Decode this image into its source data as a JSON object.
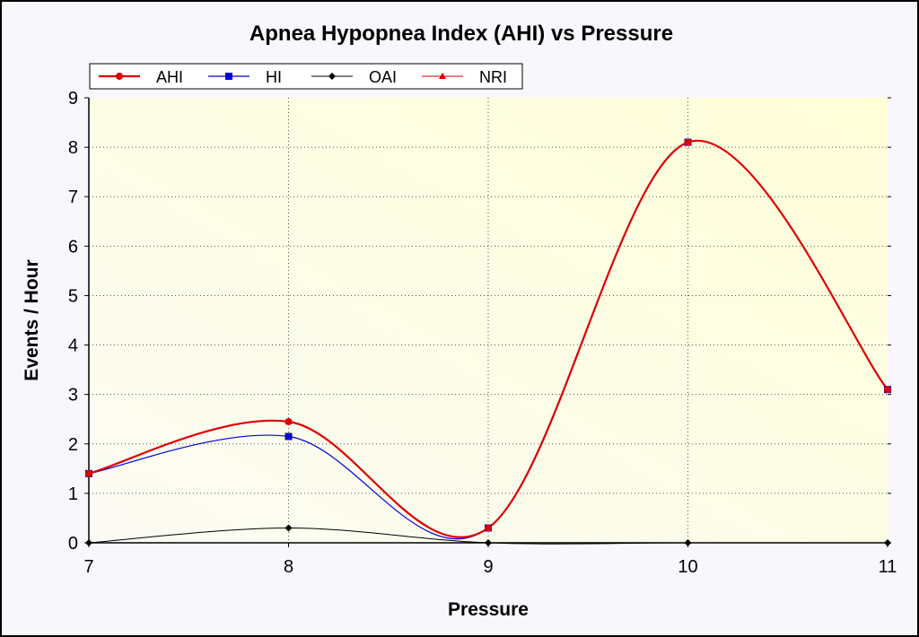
{
  "chart_data": {
    "type": "line",
    "title": "Apnea Hypopnea Index (AHI) vs Pressure",
    "xlabel": "Pressure",
    "ylabel": "Events / Hour",
    "x": [
      7,
      8,
      9,
      10,
      11
    ],
    "xlim": [
      7,
      11
    ],
    "ylim": [
      0,
      9
    ],
    "xticks": [
      "7",
      "8",
      "9",
      "10",
      "11"
    ],
    "yticks": [
      "0",
      "1",
      "2",
      "3",
      "4",
      "5",
      "6",
      "7",
      "8",
      "9"
    ],
    "grid": true,
    "smooth": true,
    "legend_position": "top-left",
    "plot_background": [
      "#ffffd8",
      "#fbfbf4"
    ],
    "series": [
      {
        "name": "AHI",
        "values": [
          1.4,
          2.45,
          0.3,
          8.1,
          3.1
        ],
        "color": "#dd0000",
        "marker": "circle",
        "width": 2.2
      },
      {
        "name": "HI",
        "values": [
          1.4,
          2.15,
          0.3,
          8.1,
          3.1
        ],
        "color": "#0000dd",
        "marker": "square",
        "width": 1.2
      },
      {
        "name": "OAI",
        "values": [
          0,
          0.3,
          0,
          0,
          0
        ],
        "color": "#000000",
        "marker": "diamond",
        "width": 1
      },
      {
        "name": "NRI",
        "values": [
          1.4,
          2.45,
          0.3,
          8.1,
          3.1
        ],
        "color": "#dd0000",
        "marker": "triangle",
        "width": 1
      }
    ]
  }
}
